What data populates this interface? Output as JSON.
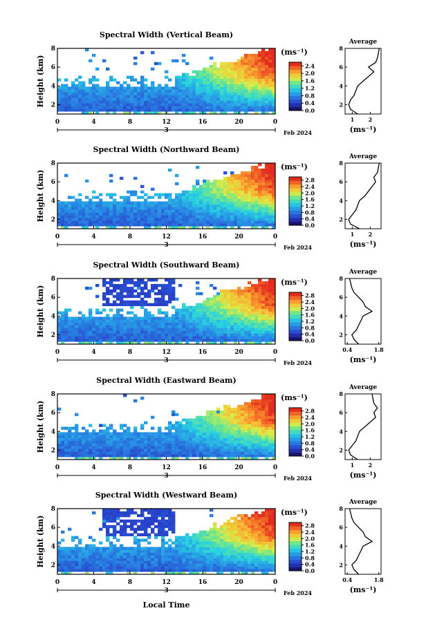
{
  "figure": {
    "xlabel": "Local Time",
    "date_marker": "3",
    "date_label": "Feb 2024",
    "avg_title": "Average",
    "unit_label": "(ms⁻¹)",
    "height_label": "Height (km)"
  },
  "chart_data": [
    {
      "type": "heatmap",
      "title": "Spectral Width (Vertical Beam)",
      "ylabel": "Height (km)",
      "xlabel": "Local Time",
      "x_ticks": [
        "0",
        "4",
        "8",
        "12",
        "16",
        "20",
        "0"
      ],
      "xlim": [
        0,
        24
      ],
      "ylim": [
        1,
        8
      ],
      "y_ticks": [
        "2",
        "4",
        "6",
        "8"
      ],
      "colorbar": {
        "unit": "(ms⁻¹)",
        "ticks": [
          "0.0",
          "0.4",
          "0.8",
          "1.2",
          "1.6",
          "2.0",
          "2.4"
        ],
        "range": [
          0,
          2.6
        ]
      },
      "average": {
        "title": "Average",
        "xlabel": "(ms⁻¹)",
        "x_ticks": [
          "1",
          "2"
        ],
        "xlim": [
          0.6,
          2.6
        ],
        "profile": [
          [
            1.3,
            1.0
          ],
          [
            0.9,
            1.5
          ],
          [
            0.8,
            2.0
          ],
          [
            0.9,
            2.5
          ],
          [
            1.1,
            3.0
          ],
          [
            1.2,
            3.5
          ],
          [
            1.3,
            4.0
          ],
          [
            1.6,
            4.5
          ],
          [
            1.9,
            5.0
          ],
          [
            2.2,
            5.5
          ],
          [
            1.9,
            6.0
          ],
          [
            2.3,
            6.5
          ],
          [
            2.4,
            7.0
          ],
          [
            2.5,
            8.0
          ]
        ]
      }
    },
    {
      "type": "heatmap",
      "title": "Spectral Width (Northward Beam)",
      "ylabel": "Height (km)",
      "xlabel": "Local Time",
      "x_ticks": [
        "0",
        "4",
        "8",
        "12",
        "16",
        "20",
        "0"
      ],
      "xlim": [
        0,
        24
      ],
      "ylim": [
        1,
        8
      ],
      "y_ticks": [
        "2",
        "4",
        "6",
        "8"
      ],
      "colorbar": {
        "unit": "(ms⁻¹)",
        "ticks": [
          "0.0",
          "0.4",
          "0.8",
          "1.2",
          "1.6",
          "2.0",
          "2.4",
          "2.8"
        ],
        "range": [
          0,
          3.0
        ]
      },
      "average": {
        "title": "Average",
        "xlabel": "(ms⁻¹)",
        "x_ticks": [
          "1",
          "2"
        ],
        "xlim": [
          0.6,
          2.6
        ],
        "profile": [
          [
            1.4,
            1.0
          ],
          [
            0.9,
            1.5
          ],
          [
            0.8,
            2.0
          ],
          [
            1.0,
            2.5
          ],
          [
            1.2,
            3.0
          ],
          [
            1.3,
            3.5
          ],
          [
            1.4,
            4.0
          ],
          [
            1.7,
            4.5
          ],
          [
            1.9,
            5.0
          ],
          [
            2.1,
            5.5
          ],
          [
            2.3,
            6.0
          ],
          [
            2.2,
            6.5
          ],
          [
            2.4,
            7.0
          ],
          [
            2.5,
            8.0
          ]
        ]
      }
    },
    {
      "type": "heatmap",
      "title": "Spectral Width (Southward Beam)",
      "ylabel": "Height (km)",
      "xlabel": "Local Time",
      "x_ticks": [
        "0",
        "4",
        "8",
        "12",
        "16",
        "20",
        "0"
      ],
      "xlim": [
        0,
        24
      ],
      "ylim": [
        1,
        8
      ],
      "y_ticks": [
        "2",
        "4",
        "6",
        "8"
      ],
      "colorbar": {
        "unit": "(ms⁻¹)",
        "ticks": [
          "0.0",
          "0.4",
          "0.8",
          "1.2",
          "1.6",
          "2.0",
          "2.4",
          "2.8"
        ],
        "range": [
          0,
          3.0
        ]
      },
      "average": {
        "title": "Average",
        "xlabel": "(ms⁻¹)",
        "x_ticks": [
          "0.4",
          "1.8"
        ],
        "xlim": [
          0.3,
          1.9
        ],
        "profile": [
          [
            0.9,
            1.0
          ],
          [
            0.7,
            1.5
          ],
          [
            0.6,
            2.0
          ],
          [
            0.8,
            2.5
          ],
          [
            0.9,
            3.0
          ],
          [
            1.0,
            3.5
          ],
          [
            1.1,
            4.0
          ],
          [
            1.5,
            4.5
          ],
          [
            1.2,
            5.0
          ],
          [
            1.1,
            5.5
          ],
          [
            0.9,
            6.0
          ],
          [
            0.7,
            6.5
          ],
          [
            0.6,
            7.0
          ],
          [
            0.5,
            8.0
          ]
        ]
      }
    },
    {
      "type": "heatmap",
      "title": "Spectral Width (Eastward Beam)",
      "ylabel": "Height (km)",
      "xlabel": "Local Time",
      "x_ticks": [
        "0",
        "4",
        "8",
        "12",
        "16",
        "20",
        "0"
      ],
      "xlim": [
        0,
        24
      ],
      "ylim": [
        1,
        8
      ],
      "y_ticks": [
        "2",
        "4",
        "6",
        "8"
      ],
      "colorbar": {
        "unit": "(ms⁻¹)",
        "ticks": [
          "0.0",
          "0.4",
          "0.8",
          "1.2",
          "1.6",
          "2.0",
          "2.4",
          "2.8"
        ],
        "range": [
          0,
          3.0
        ]
      },
      "average": {
        "title": "Average",
        "xlabel": "(ms⁻¹)",
        "x_ticks": [
          "1",
          "2"
        ],
        "xlim": [
          0.6,
          2.6
        ],
        "profile": [
          [
            1.3,
            1.0
          ],
          [
            0.9,
            1.5
          ],
          [
            0.8,
            2.0
          ],
          [
            1.0,
            2.5
          ],
          [
            1.2,
            3.0
          ],
          [
            1.3,
            3.5
          ],
          [
            1.4,
            4.0
          ],
          [
            1.7,
            4.5
          ],
          [
            2.0,
            5.0
          ],
          [
            2.3,
            5.5
          ],
          [
            2.2,
            6.0
          ],
          [
            2.4,
            6.5
          ],
          [
            2.2,
            7.0
          ],
          [
            2.1,
            8.0
          ]
        ]
      }
    },
    {
      "type": "heatmap",
      "title": "Spectral Width (Westward Beam)",
      "ylabel": "Height (km)",
      "xlabel": "Local Time",
      "x_ticks": [
        "0",
        "4",
        "8",
        "12",
        "16",
        "20",
        "0"
      ],
      "xlim": [
        0,
        24
      ],
      "ylim": [
        1,
        8
      ],
      "y_ticks": [
        "2",
        "4",
        "6",
        "8"
      ],
      "colorbar": {
        "unit": "(ms⁻¹)",
        "ticks": [
          "0.0",
          "0.4",
          "0.8",
          "1.2",
          "1.6",
          "2.0",
          "2.4",
          "2.8"
        ],
        "range": [
          0,
          3.0
        ]
      },
      "average": {
        "title": "Average",
        "xlabel": "(ms⁻¹)",
        "x_ticks": [
          "0.4",
          "1.8"
        ],
        "xlim": [
          0.3,
          1.9
        ],
        "profile": [
          [
            0.9,
            1.0
          ],
          [
            0.7,
            1.5
          ],
          [
            0.6,
            2.0
          ],
          [
            0.8,
            2.5
          ],
          [
            0.9,
            3.0
          ],
          [
            1.0,
            3.5
          ],
          [
            1.1,
            4.0
          ],
          [
            1.5,
            4.5
          ],
          [
            1.2,
            5.0
          ],
          [
            1.1,
            5.5
          ],
          [
            0.9,
            6.0
          ],
          [
            0.7,
            6.5
          ],
          [
            0.6,
            7.0
          ],
          [
            0.5,
            8.0
          ]
        ]
      }
    }
  ]
}
